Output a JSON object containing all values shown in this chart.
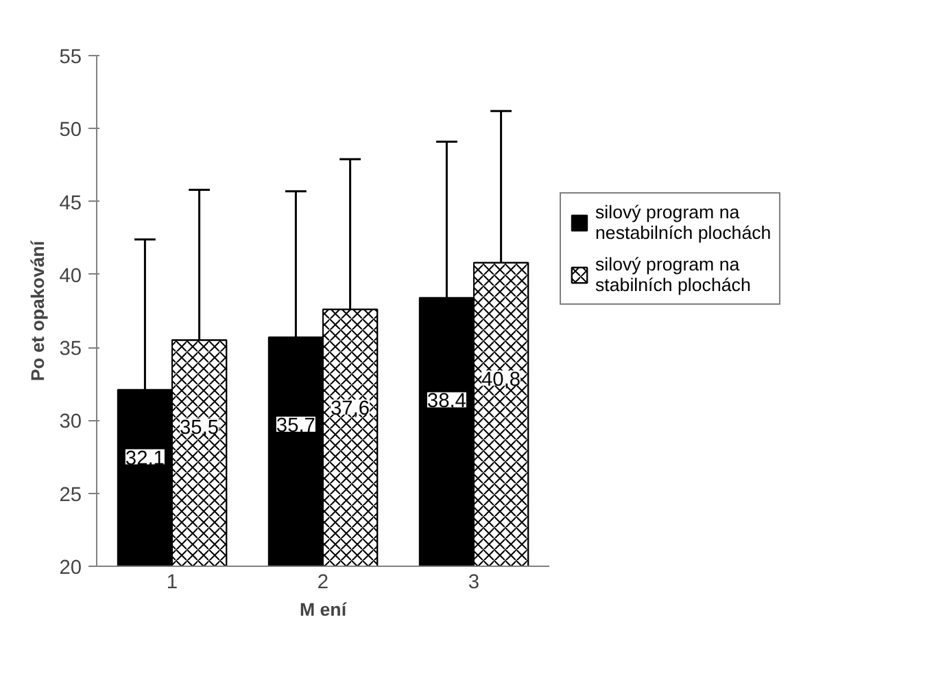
{
  "chart_data": {
    "type": "bar",
    "xlabel": "M ení",
    "ylabel": "Po et opakování",
    "categories": [
      "1",
      "2",
      "3"
    ],
    "series": [
      {
        "name": "silový program na nestabilních plochách",
        "color": "#000000",
        "values": [
          32.1,
          35.7,
          38.4
        ],
        "value_labels": [
          "32,1",
          "35,7",
          "38,4"
        ],
        "errors": [
          [
            32.1,
            42.4
          ],
          [
            35.7,
            45.7
          ],
          [
            38.4,
            49.1
          ]
        ]
      },
      {
        "name": "silový program na stabilních plochách",
        "color": "#ffffff",
        "values": [
          35.5,
          37.6,
          40.8
        ],
        "value_labels": [
          "35,5",
          "37,6",
          "40,8"
        ],
        "errors": [
          [
            35.5,
            45.8
          ],
          [
            37.6,
            47.9
          ],
          [
            40.8,
            51.2
          ]
        ]
      }
    ],
    "ylim": [
      20,
      55
    ],
    "yticks": [
      20,
      25,
      30,
      35,
      40,
      45,
      50,
      55
    ],
    "grid": false,
    "legend": "right"
  }
}
